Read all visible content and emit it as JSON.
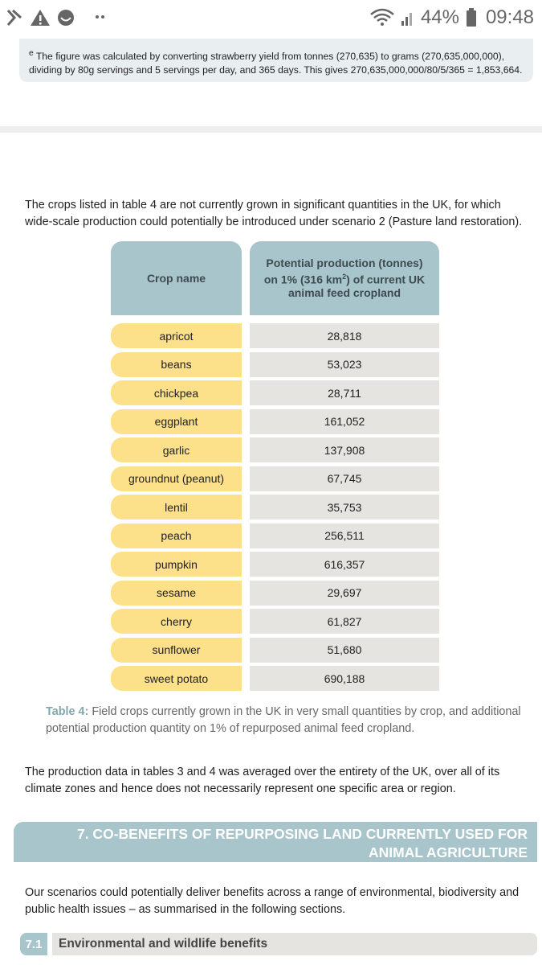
{
  "status": {
    "battery": "44%",
    "time": "09:48"
  },
  "footnote": {
    "marker": "e",
    "text": "The figure was calculated by converting strawberry yield from tonnes (270,635) to grams (270,635,000,000), dividing by 80g servings and 5 servings per day, and 365 days. This gives 270,635,000,000/80/5/365 = 1,853,664."
  },
  "intro": "The crops listed in table 4 are not currently grown in significant quantities in the UK, for which wide-scale production could potentially be introduced under scenario 2 (Pasture land restoration).",
  "table": {
    "header_crop": "Crop name",
    "header_production": {
      "before": "Potential production (tonnes) on 1% (316 km",
      "sup": "2",
      "after": ") of current UK animal feed cropland"
    },
    "rows": [
      [
        "apricot",
        "28,818"
      ],
      [
        "beans",
        "53,023"
      ],
      [
        "chickpea",
        "28,711"
      ],
      [
        "eggplant",
        "161,052"
      ],
      [
        "garlic",
        "137,908"
      ],
      [
        "groundnut (peanut)",
        "67,745"
      ],
      [
        "lentil",
        "35,753"
      ],
      [
        "peach",
        "256,511"
      ],
      [
        "pumpkin",
        "616,357"
      ],
      [
        "sesame",
        "29,697"
      ],
      [
        "cherry",
        "61,827"
      ],
      [
        "sunflower",
        "51,680"
      ],
      [
        "sweet potato",
        "690,188"
      ]
    ],
    "caption_label": "Table 4:",
    "caption_text": "Field crops currently grown in the UK in very small quantities by crop, and additional potential production quantity on 1% of repurposed animal feed cropland."
  },
  "paragraph_2": "The production data in tables 3 and 4 was averaged over the entirety of the UK, over all of its climate zones and hence does not necessarily represent one specific area or region.",
  "section": {
    "heading": "7. CO-BENEFITS OF REPURPOSING LAND CURRENTLY USED FOR ANIMAL AGRICULTURE",
    "paragraph": "Our scenarios could potentially deliver benefits across a range of environmental, biodiversity and public health issues – as summarised in the following sections.",
    "subsection_number": "7.1",
    "subsection_title": "Environmental and wildlife benefits"
  }
}
